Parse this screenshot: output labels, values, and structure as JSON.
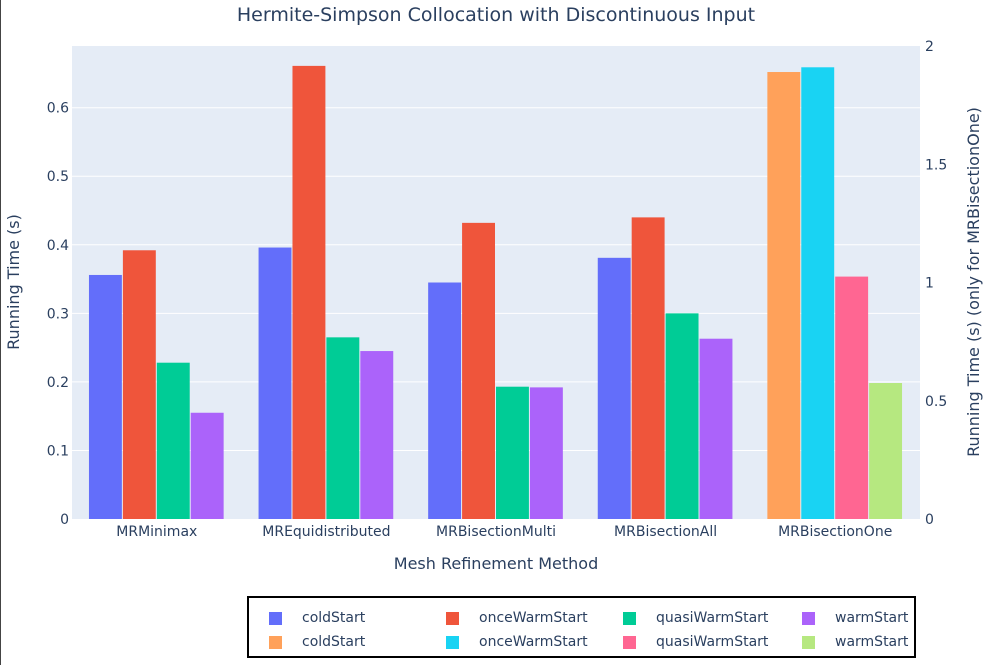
{
  "chart_data": {
    "type": "bar",
    "title": "Hermite-Simpson Collocation with Discontinuous Input",
    "xlabel": "Mesh Refinement Method",
    "ylabel": "Running Time (s)",
    "y2label": "Running Time (s) (only for MRBisectionOne)",
    "categories": [
      "MRMinimax",
      "MREquidistributed",
      "MRBisectionMulti",
      "MRBisectionAll",
      "MRBisectionOne"
    ],
    "ylim": [
      0,
      0.69
    ],
    "y2lim": [
      0,
      2
    ],
    "yticks": [
      "0",
      "0.1",
      "0.2",
      "0.3",
      "0.4",
      "0.5",
      "0.6"
    ],
    "y2ticks": [
      "0",
      "0.5",
      "1",
      "1.5",
      "2"
    ],
    "grid": true,
    "legend_position": "bottom",
    "series": [
      {
        "name": "coldStart",
        "axis": "y",
        "color": "#636efa",
        "values": [
          0.356,
          0.396,
          0.345,
          0.381,
          null
        ]
      },
      {
        "name": "onceWarmStart",
        "axis": "y",
        "color": "#ef553b",
        "values": [
          0.392,
          0.661,
          0.432,
          0.44,
          null
        ]
      },
      {
        "name": "quasiWarmStart",
        "axis": "y",
        "color": "#00cc96",
        "values": [
          0.228,
          0.265,
          0.193,
          0.3,
          null
        ]
      },
      {
        "name": "warmStart",
        "axis": "y",
        "color": "#ab63fa",
        "values": [
          0.155,
          0.245,
          0.192,
          0.263,
          null
        ]
      },
      {
        "name": "coldStart",
        "axis": "y2",
        "color": "#ffa15a",
        "values": [
          null,
          null,
          null,
          null,
          1.89
        ]
      },
      {
        "name": "onceWarmStart",
        "axis": "y2",
        "color": "#19d3f3",
        "values": [
          null,
          null,
          null,
          null,
          1.91
        ]
      },
      {
        "name": "quasiWarmStart",
        "axis": "y2",
        "color": "#ff6692",
        "values": [
          null,
          null,
          null,
          null,
          1.025
        ]
      },
      {
        "name": "warmStart",
        "axis": "y2",
        "color": "#b6e880",
        "values": [
          null,
          null,
          null,
          null,
          0.575
        ]
      }
    ]
  }
}
